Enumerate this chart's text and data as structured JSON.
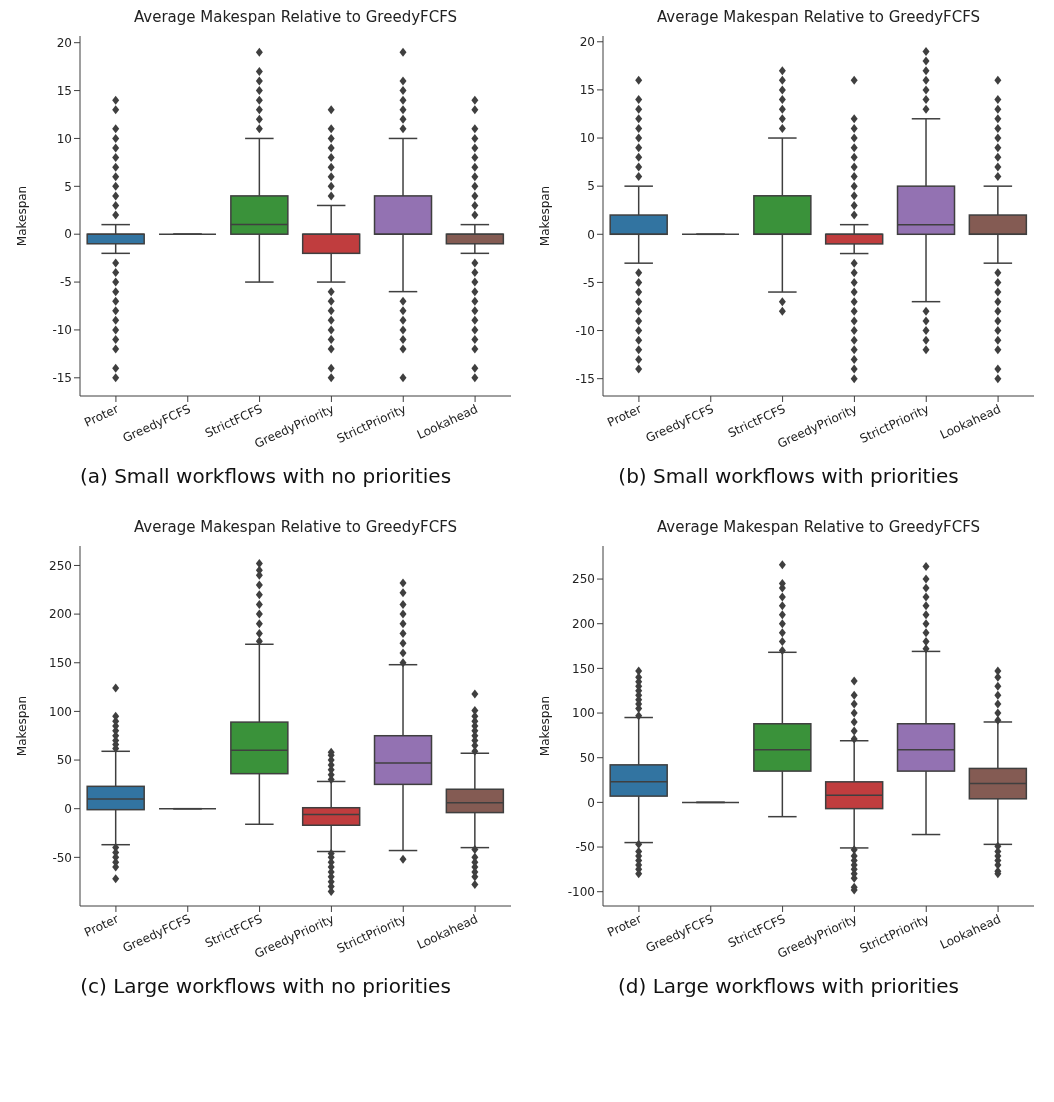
{
  "chart_data": [
    {
      "type": "box",
      "title": "Average Makespan Relative to GreedyFCFS",
      "ylabel": "Makespan",
      "annotations": [
        "(a) Small workflows with no priorities"
      ],
      "categories": [
        "Proter",
        "GreedyFCFS",
        "StrictFCFS",
        "GreedyPriority",
        "StrictPriority",
        "Lookahead"
      ],
      "colors": [
        "#3274a1",
        "#3f3f3f",
        "#3a923a",
        "#c03d3e",
        "#9372b2",
        "#845b53"
      ],
      "marker": "diamond",
      "ylim": [
        -16.9,
        20.7
      ],
      "yticks": [
        -15,
        -10,
        -5,
        0,
        5,
        10,
        15,
        20
      ],
      "boxes": [
        {
          "low": -2,
          "q1": -1,
          "median": 0,
          "q3": 0,
          "high": 1,
          "outliers": [
            2,
            3,
            4,
            5,
            6,
            7,
            8,
            9,
            10,
            11,
            13,
            14,
            -3,
            -4,
            -5,
            -6,
            -7,
            -8,
            -9,
            -10,
            -11,
            -12,
            -14,
            -15
          ]
        },
        {
          "low": 0,
          "q1": 0,
          "median": 0,
          "q3": 0,
          "high": 0
        },
        {
          "low": -5,
          "q1": 0,
          "median": 1,
          "q3": 4,
          "high": 10,
          "outliers": [
            11,
            12,
            13,
            14,
            15,
            16,
            17,
            19
          ]
        },
        {
          "low": -5,
          "q1": -2,
          "median": 0,
          "q3": 0,
          "high": 3,
          "outliers": [
            4,
            5,
            6,
            7,
            8,
            9,
            10,
            11,
            13,
            -6,
            -7,
            -8,
            -9,
            -10,
            -11,
            -12,
            -14,
            -15
          ]
        },
        {
          "low": -6,
          "q1": 0,
          "median": 0,
          "q3": 4,
          "high": 10,
          "outliers": [
            11,
            12,
            13,
            14,
            15,
            16,
            19,
            -7,
            -8,
            -9,
            -10,
            -11,
            -12,
            -15
          ]
        },
        {
          "low": -2,
          "q1": -1,
          "median": 0,
          "q3": 0,
          "high": 1,
          "outliers": [
            2,
            3,
            4,
            5,
            6,
            7,
            8,
            9,
            10,
            11,
            13,
            14,
            -3,
            -4,
            -5,
            -6,
            -7,
            -8,
            -9,
            -10,
            -11,
            -12,
            -14,
            -15
          ]
        }
      ]
    },
    {
      "type": "box",
      "title": "Average Makespan Relative to GreedyFCFS",
      "ylabel": "Makespan",
      "annotations": [
        "(b) Small workflows with priorities"
      ],
      "categories": [
        "Proter",
        "GreedyFCFS",
        "StrictFCFS",
        "GreedyPriority",
        "StrictPriority",
        "Lookahead"
      ],
      "colors": [
        "#3274a1",
        "#3f3f3f",
        "#3a923a",
        "#c03d3e",
        "#9372b2",
        "#845b53"
      ],
      "marker": "diamond",
      "ylim": [
        -16.8,
        20.6
      ],
      "yticks": [
        -15,
        -10,
        -5,
        0,
        5,
        10,
        15,
        20
      ],
      "boxes": [
        {
          "low": -3,
          "q1": 0,
          "median": 0,
          "q3": 2,
          "high": 5,
          "outliers": [
            6,
            7,
            8,
            9,
            10,
            11,
            12,
            13,
            14,
            16,
            -4,
            -5,
            -6,
            -7,
            -8,
            -9,
            -10,
            -11,
            -12,
            -13,
            -14
          ]
        },
        {
          "low": 0,
          "q1": 0,
          "median": 0,
          "q3": 0,
          "high": 0
        },
        {
          "low": -6,
          "q1": 0,
          "median": 0,
          "q3": 4,
          "high": 10,
          "outliers": [
            11,
            12,
            13,
            14,
            15,
            16,
            17,
            -7,
            -8
          ]
        },
        {
          "low": -2,
          "q1": -1,
          "median": 0,
          "q3": 0,
          "high": 1,
          "outliers": [
            2,
            3,
            4,
            5,
            6,
            7,
            8,
            9,
            10,
            11,
            12,
            16,
            -3,
            -4,
            -5,
            -6,
            -7,
            -8,
            -9,
            -10,
            -11,
            -12,
            -13,
            -14,
            -15
          ]
        },
        {
          "low": -7,
          "q1": 0,
          "median": 1,
          "q3": 5,
          "high": 12,
          "outliers": [
            13,
            14,
            15,
            16,
            17,
            18,
            19,
            -8,
            -9,
            -10,
            -11,
            -12
          ]
        },
        {
          "low": -3,
          "q1": 0,
          "median": 0,
          "q3": 2,
          "high": 5,
          "outliers": [
            6,
            7,
            8,
            9,
            10,
            11,
            12,
            13,
            14,
            16,
            -4,
            -5,
            -6,
            -7,
            -8,
            -9,
            -10,
            -11,
            -12,
            -14,
            -15
          ]
        }
      ]
    },
    {
      "type": "box",
      "title": "Average Makespan Relative to GreedyFCFS",
      "ylabel": "Makespan",
      "annotations": [
        "(c) Large workflows with no priorities"
      ],
      "categories": [
        "Proter",
        "GreedyFCFS",
        "StrictFCFS",
        "GreedyPriority",
        "StrictPriority",
        "Lookahead"
      ],
      "colors": [
        "#3274a1",
        "#3f3f3f",
        "#3a923a",
        "#c03d3e",
        "#9372b2",
        "#845b53"
      ],
      "marker": "diamond",
      "ylim": [
        -100,
        270
      ],
      "yticks": [
        -50,
        0,
        50,
        100,
        150,
        200,
        250
      ],
      "boxes": [
        {
          "low": -37,
          "q1": -1,
          "median": 10,
          "q3": 23,
          "high": 59,
          "outliers": [
            62,
            66,
            70,
            75,
            80,
            85,
            90,
            95,
            124,
            -40,
            -45,
            -50,
            -55,
            -60,
            -72
          ]
        },
        {
          "low": 0,
          "q1": 0,
          "median": 0,
          "q3": 0,
          "high": 0
        },
        {
          "low": -16,
          "q1": 36,
          "median": 60,
          "q3": 89,
          "high": 169,
          "outliers": [
            172,
            180,
            190,
            200,
            210,
            220,
            230,
            240,
            245,
            252
          ]
        },
        {
          "low": -44,
          "q1": -17,
          "median": -6,
          "q3": 1,
          "high": 28,
          "outliers": [
            30,
            35,
            40,
            45,
            50,
            55,
            58,
            -46,
            -50,
            -55,
            -60,
            -65,
            -70,
            -75,
            -80,
            -85
          ]
        },
        {
          "low": -43,
          "q1": 25,
          "median": 47,
          "q3": 75,
          "high": 148,
          "outliers": [
            150,
            160,
            170,
            180,
            190,
            200,
            210,
            222,
            232,
            -52
          ]
        },
        {
          "low": -40,
          "q1": -4,
          "median": 6,
          "q3": 20,
          "high": 57,
          "outliers": [
            59,
            65,
            70,
            75,
            80,
            85,
            90,
            95,
            101,
            118,
            -42,
            -50,
            -55,
            -60,
            -65,
            -70,
            -78
          ]
        }
      ]
    },
    {
      "type": "box",
      "title": "Average Makespan Relative to GreedyFCFS",
      "ylabel": "Makespan",
      "annotations": [
        "(d) Large workflows with priorities"
      ],
      "categories": [
        "Proter",
        "GreedyFCFS",
        "StrictFCFS",
        "GreedyPriority",
        "StrictPriority",
        "Lookahead"
      ],
      "colors": [
        "#3274a1",
        "#3f3f3f",
        "#3a923a",
        "#c03d3e",
        "#9372b2",
        "#845b53"
      ],
      "marker": "diamond",
      "ylim": [
        -116,
        287
      ],
      "yticks": [
        -100,
        -50,
        0,
        50,
        100,
        150,
        200,
        250
      ],
      "boxes": [
        {
          "low": -45,
          "q1": 7,
          "median": 23,
          "q3": 42,
          "high": 95,
          "outliers": [
            97,
            105,
            110,
            115,
            120,
            125,
            130,
            135,
            140,
            147,
            -47,
            -55,
            -60,
            -65,
            -70,
            -75,
            -80
          ]
        },
        {
          "low": 0,
          "q1": 0,
          "median": 0,
          "q3": 0,
          "high": 0
        },
        {
          "low": -16,
          "q1": 35,
          "median": 59,
          "q3": 88,
          "high": 168,
          "outliers": [
            170,
            180,
            190,
            200,
            210,
            220,
            230,
            240,
            245,
            266
          ]
        },
        {
          "low": -51,
          "q1": -7,
          "median": 8,
          "q3": 23,
          "high": 69,
          "outliers": [
            71,
            80,
            90,
            100,
            110,
            120,
            136,
            -53,
            -60,
            -65,
            -70,
            -75,
            -80,
            -85,
            -95,
            -98
          ]
        },
        {
          "low": -36,
          "q1": 35,
          "median": 59,
          "q3": 88,
          "high": 169,
          "outliers": [
            172,
            180,
            190,
            200,
            210,
            220,
            230,
            240,
            250,
            264
          ]
        },
        {
          "low": -47,
          "q1": 4,
          "median": 21,
          "q3": 38,
          "high": 90,
          "outliers": [
            92,
            100,
            110,
            120,
            130,
            140,
            147,
            -49,
            -55,
            -60,
            -65,
            -70,
            -77,
            -80
          ]
        }
      ]
    }
  ]
}
